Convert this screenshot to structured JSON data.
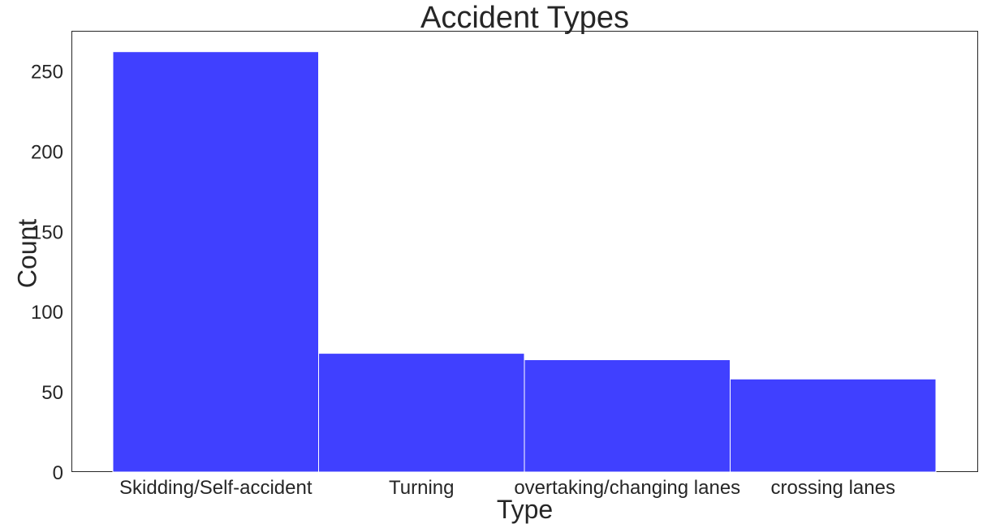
{
  "chart_data": {
    "type": "bar",
    "title": "Accident Types",
    "xlabel": "Type",
    "ylabel": "Count",
    "categories": [
      "Skidding/Self-accident",
      "Turning",
      "overtaking/changing lanes",
      "crossing lanes"
    ],
    "values": [
      262,
      74,
      70,
      58
    ],
    "ylim": [
      0,
      275
    ],
    "yticks": [
      0,
      50,
      100,
      150,
      200,
      250
    ],
    "grid": false,
    "bar_color": "#4040ff",
    "bar_edge_color": "#ffffff",
    "axis_color": "#262626"
  }
}
